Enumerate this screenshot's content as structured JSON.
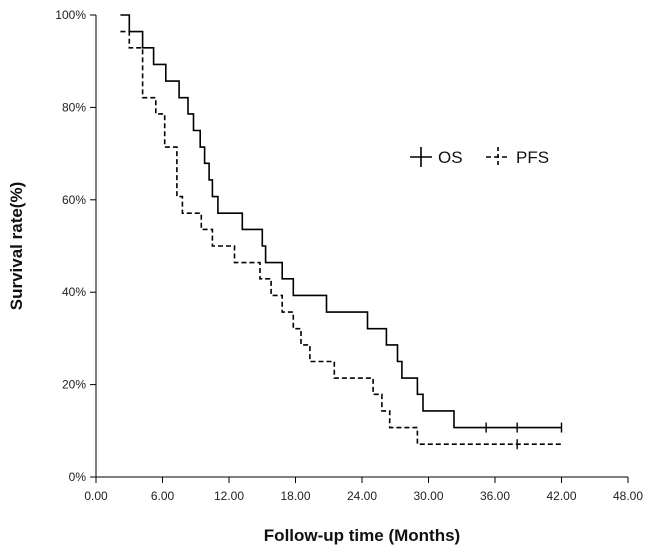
{
  "chart_data": {
    "type": "line",
    "subtype": "kaplan-meier-step",
    "title": "",
    "xlabel": "Follow-up time (Months)",
    "ylabel": "Survival rate(%)",
    "xlim": [
      0,
      48
    ],
    "ylim": [
      0,
      100
    ],
    "x_ticks": [
      0,
      6,
      12,
      18,
      24,
      30,
      36,
      42,
      48
    ],
    "x_tick_labels": [
      "0.00",
      "6.00",
      "12.00",
      "18.00",
      "24.00",
      "30.00",
      "36.00",
      "42.00",
      "48.00"
    ],
    "y_ticks": [
      0,
      20,
      40,
      60,
      80,
      100
    ],
    "y_tick_labels": [
      "0%",
      "20%",
      "40%",
      "60%",
      "80%",
      "100%"
    ],
    "legend_position": "top-right",
    "series": [
      {
        "name": "OS",
        "style": "solid",
        "color": "#000000",
        "points": [
          [
            2.2,
            100
          ],
          [
            3.0,
            96.4
          ],
          [
            4.2,
            92.9
          ],
          [
            5.2,
            89.3
          ],
          [
            6.3,
            85.7
          ],
          [
            7.5,
            82.1
          ],
          [
            8.3,
            78.6
          ],
          [
            8.8,
            75.0
          ],
          [
            9.4,
            71.4
          ],
          [
            9.8,
            67.9
          ],
          [
            10.2,
            64.3
          ],
          [
            10.5,
            60.7
          ],
          [
            11.0,
            57.1
          ],
          [
            13.2,
            53.6
          ],
          [
            15.0,
            50.0
          ],
          [
            15.3,
            46.4
          ],
          [
            16.8,
            42.9
          ],
          [
            17.8,
            39.3
          ],
          [
            20.8,
            35.7
          ],
          [
            24.5,
            32.1
          ],
          [
            26.2,
            28.6
          ],
          [
            27.2,
            25.0
          ],
          [
            27.6,
            21.4
          ],
          [
            29.0,
            17.9
          ],
          [
            29.5,
            14.3
          ],
          [
            32.3,
            10.7
          ],
          [
            42.0,
            10.7
          ]
        ],
        "censor_times": [
          35.2,
          38.0,
          42.0
        ]
      },
      {
        "name": "PFS",
        "style": "dashed",
        "color": "#000000",
        "points": [
          [
            2.2,
            96.4
          ],
          [
            3.0,
            92.9
          ],
          [
            4.2,
            82.1
          ],
          [
            5.4,
            78.6
          ],
          [
            6.2,
            71.4
          ],
          [
            7.3,
            60.7
          ],
          [
            7.8,
            57.1
          ],
          [
            9.5,
            53.6
          ],
          [
            10.5,
            50.0
          ],
          [
            12.5,
            46.4
          ],
          [
            14.8,
            42.9
          ],
          [
            15.8,
            39.3
          ],
          [
            16.8,
            35.7
          ],
          [
            17.8,
            32.1
          ],
          [
            18.5,
            28.6
          ],
          [
            19.3,
            25.0
          ],
          [
            21.5,
            21.4
          ],
          [
            25.0,
            17.9
          ],
          [
            25.8,
            14.3
          ],
          [
            26.5,
            10.7
          ],
          [
            29.0,
            7.1
          ],
          [
            42.0,
            7.1
          ]
        ],
        "censor_times": [
          38.0
        ]
      }
    ]
  }
}
